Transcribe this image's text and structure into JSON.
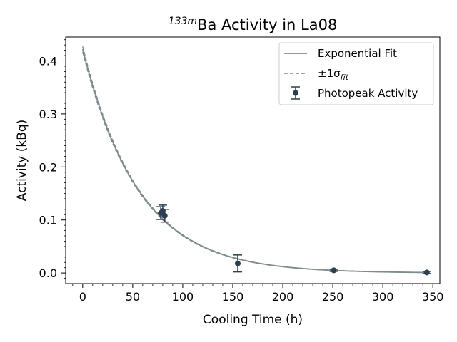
{
  "chart_data": {
    "type": "scatter",
    "title_sup": "133m",
    "title_main": "Ba Activity in La08",
    "xlabel": "Cooling Time (h)",
    "ylabel": "Activity (kBq)",
    "xlim": [
      -17,
      357
    ],
    "ylim": [
      -0.02,
      0.445
    ],
    "xticks": [
      0,
      50,
      100,
      150,
      200,
      250,
      300,
      350
    ],
    "yticks": [
      0.0,
      0.1,
      0.2,
      0.3,
      0.4
    ],
    "legend_position": "top-right",
    "legend": {
      "fit": "Exponential Fit",
      "sigma_prefix": "±1σ",
      "sigma_sub": "fit",
      "points": "Photopeak Activity"
    },
    "fit": {
      "A0": 0.422,
      "half_life_h": 38.9,
      "sigma_frac": 0.012,
      "x_range": [
        0,
        346
      ]
    },
    "points": [
      {
        "x": 78,
        "y": 0.113,
        "yerr": 0.012
      },
      {
        "x": 80,
        "y": 0.117,
        "yerr": 0.011
      },
      {
        "x": 82,
        "y": 0.108,
        "yerr": 0.012
      },
      {
        "x": 155,
        "y": 0.018,
        "yerr": 0.016
      },
      {
        "x": 251,
        "y": 0.005,
        "yerr": 0.002
      },
      {
        "x": 344,
        "y": 0.001,
        "yerr": 0.002
      }
    ],
    "colors": {
      "fit": "#7f8c8d",
      "points": "#2c3e50",
      "axes": "#000000",
      "legend_border": "#cccccc"
    }
  }
}
